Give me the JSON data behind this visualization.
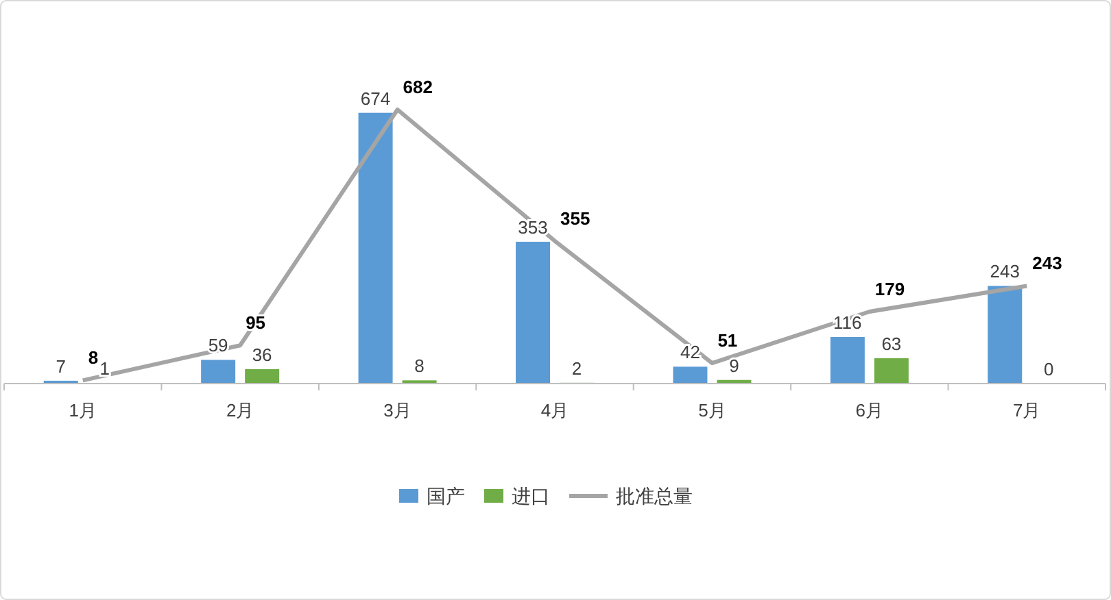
{
  "chart_data": {
    "type": "bar",
    "categories": [
      "1月",
      "2月",
      "3月",
      "4月",
      "5月",
      "6月",
      "7月"
    ],
    "series": [
      {
        "name": "国产",
        "color": "#5b9bd5",
        "values": [
          7,
          59,
          674,
          353,
          42,
          116,
          243
        ]
      },
      {
        "name": "进口",
        "color": "#70ad47",
        "values": [
          1,
          36,
          8,
          2,
          9,
          63,
          0
        ]
      },
      {
        "name": "批准总量",
        "type": "line",
        "color": "#a5a5a5",
        "values": [
          8,
          95,
          682,
          355,
          51,
          179,
          243
        ]
      }
    ],
    "data_labels": true,
    "legend": "bottom",
    "grid": false,
    "marker": "none",
    "line_style": "solid"
  }
}
